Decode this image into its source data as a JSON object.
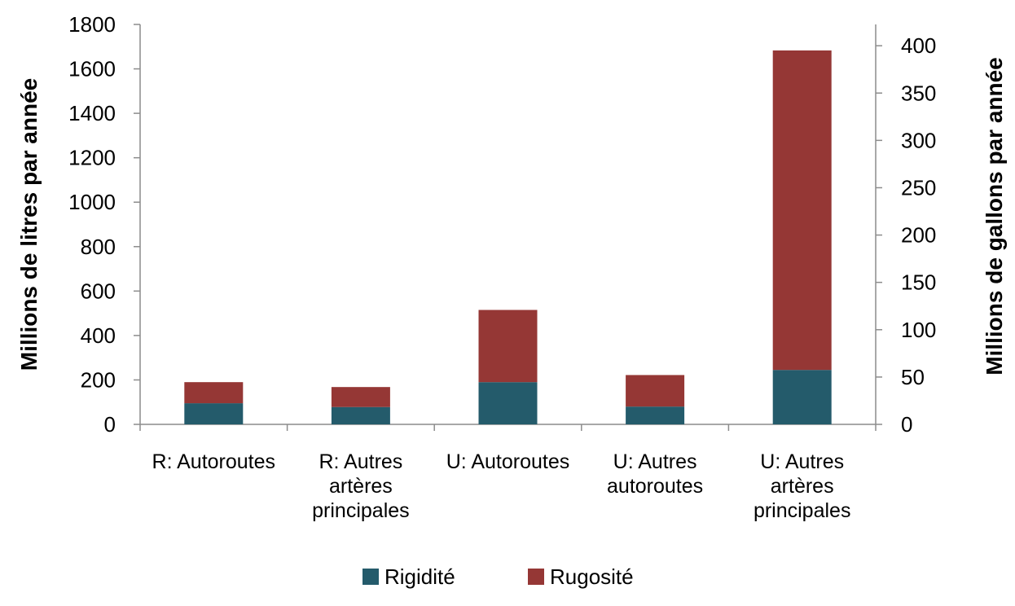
{
  "chart_data": {
    "type": "bar",
    "stacked": true,
    "categories": [
      [
        "R: Autoroutes"
      ],
      [
        "R: Autres",
        "artères",
        "principales"
      ],
      [
        "U: Autoroutes"
      ],
      [
        "U: Autres",
        "autoroutes"
      ],
      [
        "U: Autres",
        "artères",
        "principales"
      ]
    ],
    "series": [
      {
        "name": "Rigidité",
        "color": "#245b6b",
        "values": [
          95,
          78,
          190,
          80,
          245
        ]
      },
      {
        "name": "Rugosité",
        "color": "#953735",
        "values": [
          95,
          90,
          325,
          142,
          1438
        ]
      }
    ],
    "ylabel": "Millions de litres par année",
    "y2label": "Millions de gallons par année",
    "ylim": [
      0,
      1800
    ],
    "yticks": [
      0,
      200,
      400,
      600,
      800,
      1000,
      1200,
      1400,
      1600,
      1800
    ],
    "y2lim": [
      0,
      422.5
    ],
    "y2ticks": [
      0,
      50,
      100,
      150,
      200,
      250,
      300,
      350,
      400
    ],
    "grid": false,
    "legend": "bottom"
  }
}
